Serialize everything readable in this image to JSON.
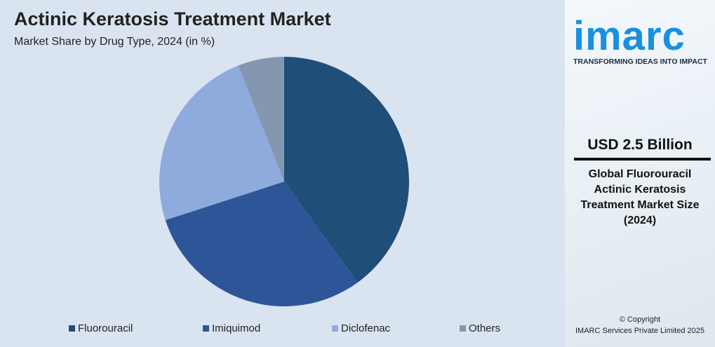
{
  "chart_data": {
    "type": "pie",
    "title": "Actinic Keratosis Treatment Market",
    "subtitle": "Market Share by Drug Type, 2024 (in %)",
    "categories": [
      "Fluorouracil",
      "Imiquimod",
      "Diclofenac",
      "Others"
    ],
    "values": [
      40,
      30,
      24,
      6
    ],
    "colors": [
      "#1f4e79",
      "#2e5597",
      "#8faadc",
      "#8497b0"
    ],
    "legend": "bottom"
  },
  "sidebar": {
    "logo": "imarc",
    "tagline": "TRANSFORMING IDEAS INTO IMPACT",
    "headline": "USD 2.5 Billion",
    "description": [
      "Global Fluorouracil",
      "Actinic Keratosis",
      "Treatment Market Size",
      "(2024)"
    ],
    "copyright": [
      "© Copyright",
      "IMARC Services Private Limited 2025"
    ]
  }
}
